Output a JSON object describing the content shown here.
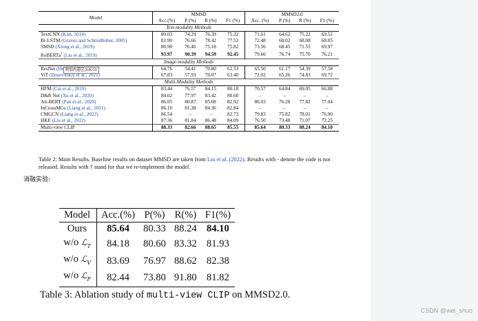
{
  "table2": {
    "header": {
      "model": "Model",
      "group1": "MMSD",
      "group2": "MMSD2.0",
      "cols": [
        "Acc.(%)",
        "P (%)",
        "R (%)",
        "F1 (%)",
        "Acc. (%)",
        "P (%)",
        "R (%)",
        "F1 (%)"
      ]
    },
    "sections": [
      {
        "title": "Text-modality Methods",
        "rows": [
          {
            "name": "TextCNN",
            "cite": "(Kim, 2014)",
            "vals": [
              "80.03",
              "74.29",
              "76.39",
              "75.32",
              "71.61",
              "64.62",
              "75.22",
              "69.52"
            ]
          },
          {
            "name": "Bi-LSTM",
            "cite": "(Graves and Schmidhuber, 2005)",
            "vals": [
              "81.90",
              "76.66",
              "78.42",
              "77.53",
              "72.48",
              "68.02",
              "68.08",
              "68.05"
            ]
          },
          {
            "name": "SMSD",
            "cite": "(Xiong et al., 2019)",
            "vals": [
              "80.90",
              "76.46",
              "75.18",
              "75.82",
              "73.56",
              "68.45",
              "71.55",
              "69.97"
            ]
          },
          {
            "name": "RoBERTa",
            "dagger": "†",
            "cite": "(Liu et al., 2019)",
            "vals": [
              "93.97",
              "90.39",
              "94.59",
              "92.45",
              "79.66",
              "76.74",
              "75.70",
              "76.21"
            ],
            "bold": [
              0,
              1,
              2,
              3
            ]
          }
        ]
      },
      {
        "title": "Image-modality Methods",
        "rows": [
          {
            "name": "ResNet",
            "cite": "(He et al., 2015)",
            "vals": [
              "64.76",
              "54.41",
              "70.80",
              "61.53",
              "65.50",
              "61.17",
              "54.39",
              "57.58"
            ]
          },
          {
            "name": "ViT",
            "cite": "(Dosovitskiy et al., 2021)",
            "vals": [
              "67.83",
              "57.93",
              "70.07",
              "63.40",
              "72.02",
              "65.26",
              "74.83",
              "69.72"
            ]
          }
        ]
      },
      {
        "title": "Multi-Modality Methods",
        "rows": [
          {
            "name": "HFM",
            "cite": "(Cai et al., 2019)",
            "vals": [
              "83.44",
              "76.57",
              "84.15",
              "80.18",
              "70.57",
              "64.84",
              "69.05",
              "66.88"
            ]
          },
          {
            "name": "D&R Net",
            "cite": "(Xu et al., 2020)",
            "vals": [
              "84.02",
              "77.97",
              "83.42",
              "80.60",
              "–",
              "–",
              "–",
              "–"
            ]
          },
          {
            "name": "Att-BERT",
            "cite": "(Pan et al., 2020)",
            "vals": [
              "86.05",
              "80.87",
              "85.08",
              "82.92",
              "80.03",
              "76.28",
              "77.82",
              "77.04"
            ]
          },
          {
            "name": "InCrossMGs",
            "cite": "(Liang et al., 2021)",
            "vals": [
              "86.10",
              "81.38",
              "84.36",
              "82.84",
              "–",
              "–",
              "–",
              "–"
            ]
          },
          {
            "name": "CMGCN",
            "cite": "(Liang et al., 2022)",
            "vals": [
              "86.54",
              "–",
              "–",
              "82.73",
              "79.83",
              "75.82",
              "78.01",
              "76.90"
            ]
          },
          {
            "name": "HKE",
            "cite": "(Liu et al., 2022)",
            "vals": [
              "87.36",
              "81.84",
              "86.48",
              "84.09",
              "76.50",
              "73.48",
              "71.07",
              "72.25"
            ]
          },
          {
            "name": "Multi-view CLIP",
            "cite": "",
            "vals": [
              "88.33",
              "82.66",
              "88.65",
              "85.55",
              "85.64",
              "80.33",
              "88.24",
              "84.10"
            ],
            "bold": [
              0,
              1,
              2,
              3,
              4,
              5,
              6,
              7
            ]
          }
        ]
      }
    ],
    "badge": "附加内容区(X/K/10",
    "caption_a": "Table 2: Main Results. Baseline results on dataset MMSD are taken from ",
    "caption_cite": "Liu et al. (2022)",
    "caption_b": ". Results with - denote the code is not released. Results with † stand for that we re-implement the model."
  },
  "note": "消融实验:",
  "table3": {
    "header": [
      "Model",
      "Acc.(%)",
      "P(%)",
      "R(%)",
      "F1(%)"
    ],
    "rows": [
      {
        "prefix": "Ours",
        "sub": "",
        "vals": [
          "85.64",
          "80.33",
          "88.24",
          "84.10"
        ],
        "bold": [
          0,
          3
        ]
      },
      {
        "prefix": "w/o ",
        "sub": "T",
        "vals": [
          "84.18",
          "80.60",
          "83.32",
          "81.93"
        ]
      },
      {
        "prefix": "w/o ",
        "sub": "V",
        "vals": [
          "83.69",
          "76.97",
          "88.62",
          "82.38"
        ]
      },
      {
        "prefix": "w/o ",
        "sub": "F",
        "vals": [
          "82.44",
          "73.80",
          "91.80",
          "81.82"
        ]
      }
    ],
    "caption_a": "Table 3:  Ablation study of ",
    "caption_mono": "multi-view  CLIP",
    "caption_b": " on MMSD2.0."
  },
  "watermark": "CSDN @wei_shuo"
}
